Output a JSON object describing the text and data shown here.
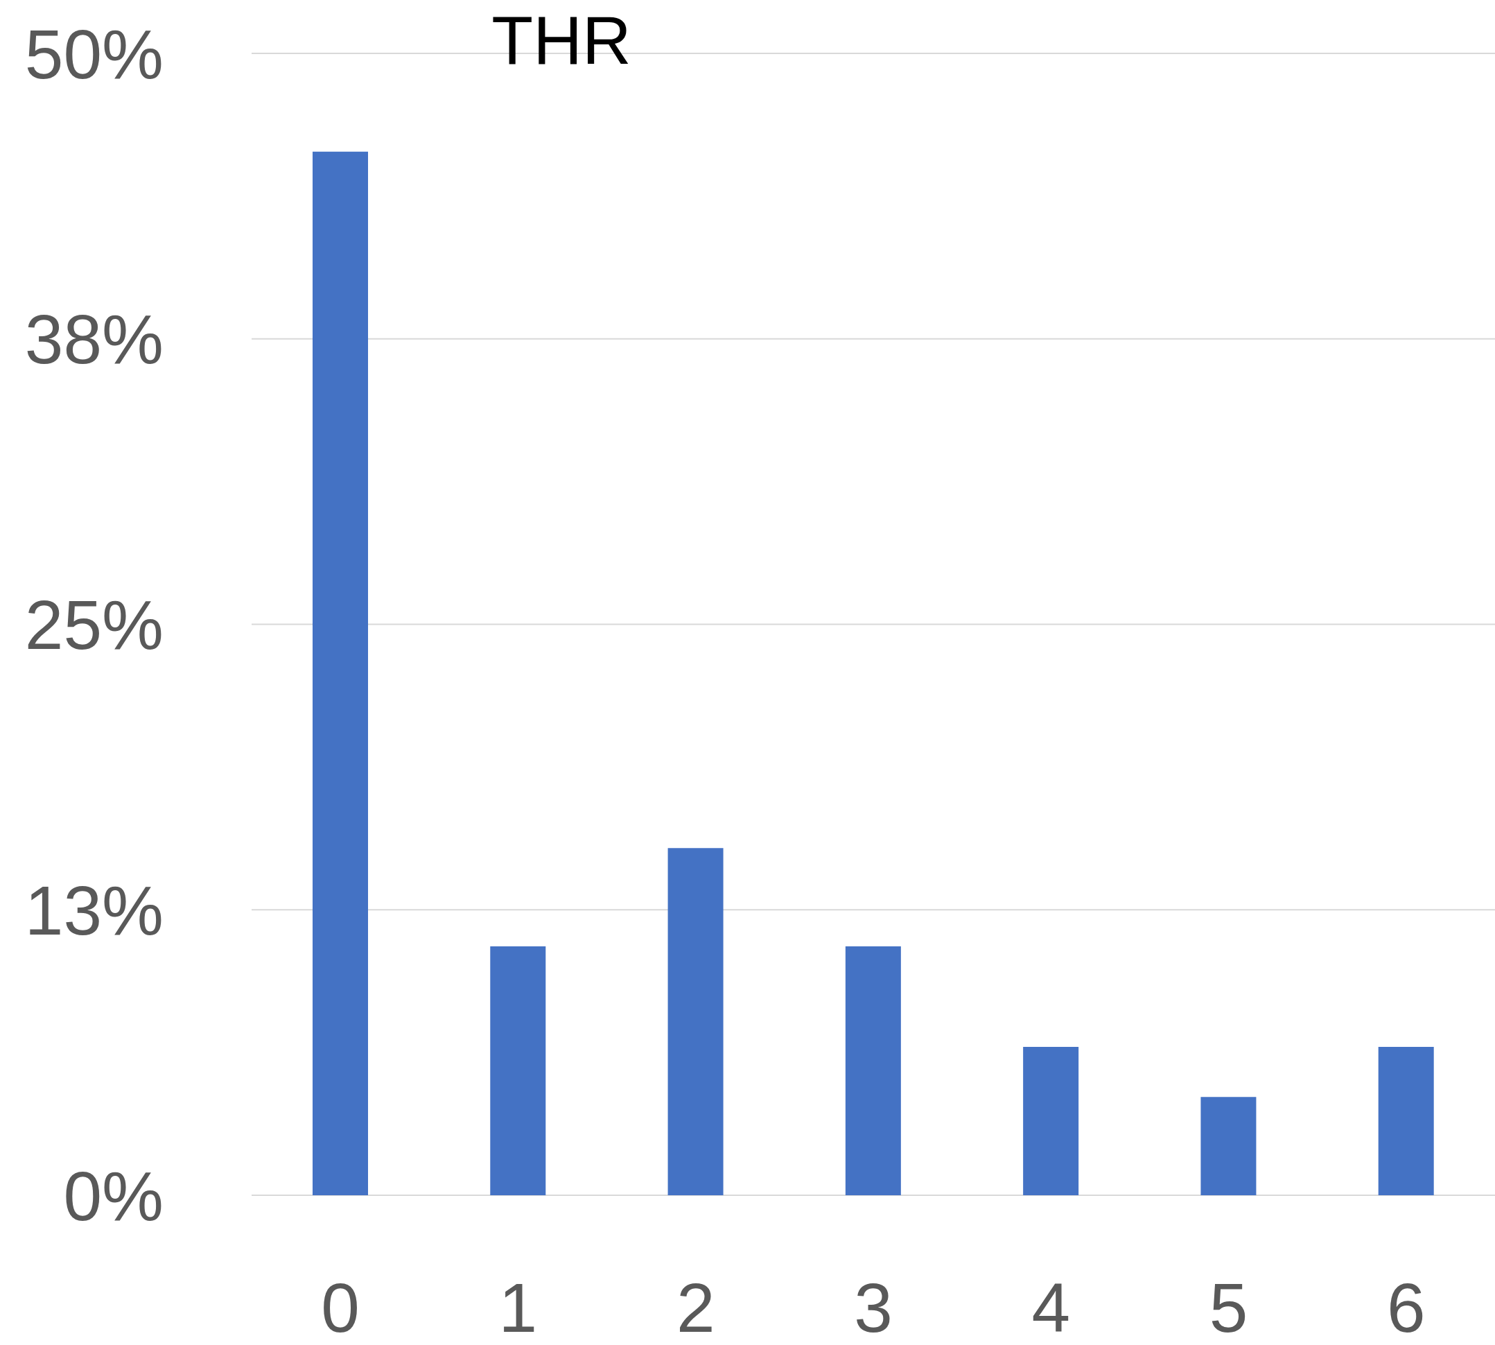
{
  "chart_data": {
    "type": "bar",
    "title": "THR",
    "categories": [
      "0",
      "1",
      "2",
      "3",
      "4",
      "5",
      "6"
    ],
    "values": [
      45.7,
      10.9,
      15.2,
      10.9,
      6.5,
      4.3,
      6.5
    ],
    "color": "#4472c4",
    "ylim": [
      0,
      50
    ],
    "yticks": [
      {
        "value": 0,
        "label": "0%"
      },
      {
        "value": 12.5,
        "label": "13%"
      },
      {
        "value": 25,
        "label": "25%"
      },
      {
        "value": 37.5,
        "label": "38%"
      },
      {
        "value": 50,
        "label": "50%"
      }
    ],
    "grid": "y"
  }
}
